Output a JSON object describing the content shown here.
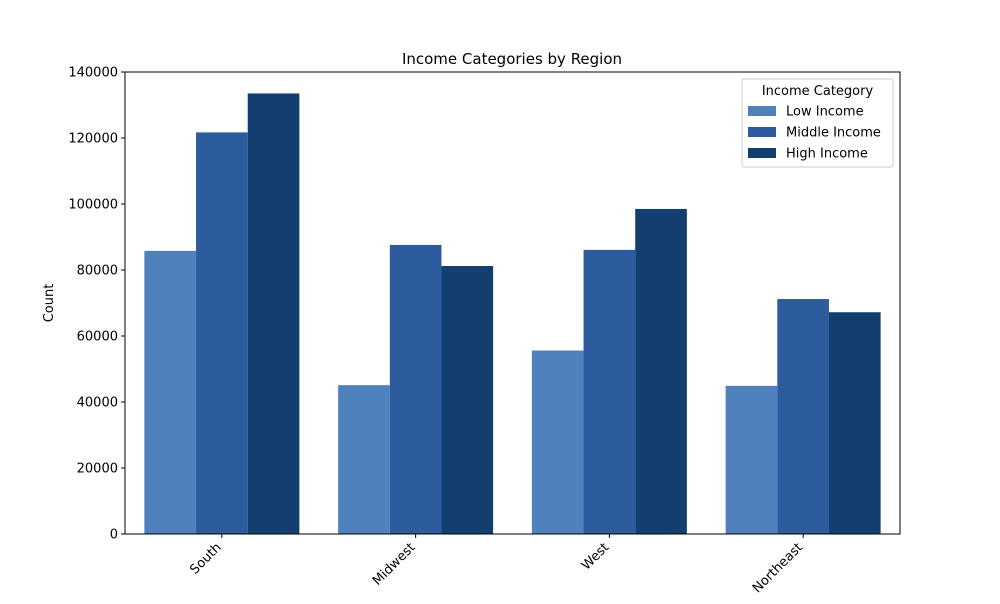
{
  "chart_data": {
    "type": "bar",
    "title": "Income Categories by Region",
    "xlabel": "",
    "ylabel": "Count",
    "categories": [
      "South",
      "Midwest",
      "West",
      "Northeast"
    ],
    "series": [
      {
        "name": "Low Income",
        "color": "#4f81bd",
        "values": [
          85800,
          45100,
          55600,
          44900
        ]
      },
      {
        "name": "Middle Income",
        "color": "#2d5c9e",
        "values": [
          121700,
          87600,
          86100,
          71200
        ]
      },
      {
        "name": "High Income",
        "color": "#123f70",
        "values": [
          133500,
          81200,
          98500,
          67200
        ]
      }
    ],
    "ylim": [
      0,
      140000
    ],
    "yticks": [
      "0",
      "20000",
      "40000",
      "60000",
      "80000",
      "100000",
      "120000",
      "140000"
    ],
    "grid": false,
    "legend": {
      "title": "Income Category",
      "placement": "top-right"
    }
  }
}
